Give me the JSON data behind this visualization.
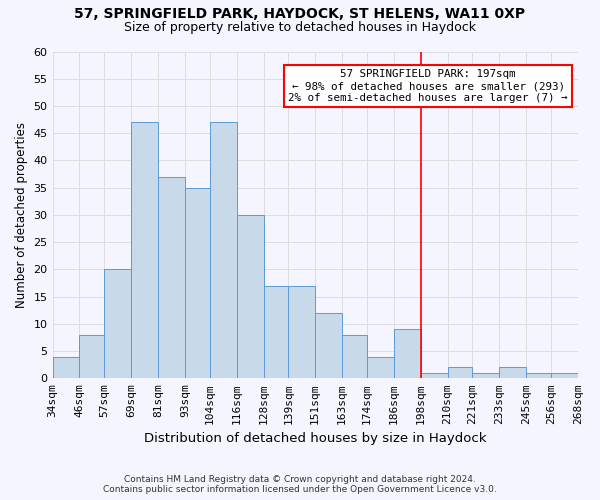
{
  "title1": "57, SPRINGFIELD PARK, HAYDOCK, ST HELENS, WA11 0XP",
  "title2": "Size of property relative to detached houses in Haydock",
  "xlabel": "Distribution of detached houses by size in Haydock",
  "ylabel": "Number of detached properties",
  "footer1": "Contains HM Land Registry data © Crown copyright and database right 2024.",
  "footer2": "Contains public sector information licensed under the Open Government Licence v3.0.",
  "bin_edges": [
    34,
    46,
    57,
    69,
    81,
    93,
    104,
    116,
    128,
    139,
    151,
    163,
    174,
    186,
    198,
    210,
    221,
    233,
    245,
    256,
    268
  ],
  "bin_heights": [
    4,
    8,
    20,
    47,
    37,
    35,
    47,
    30,
    17,
    17,
    12,
    8,
    4,
    9,
    1,
    2,
    1,
    2,
    1,
    1
  ],
  "bar_color": "#c8d9ea",
  "bar_edgecolor": "#5b9bd5",
  "marker_x": 198,
  "marker_color": "red",
  "annotation_title": "57 SPRINGFIELD PARK: 197sqm",
  "annotation_line1": "← 98% of detached houses are smaller (293)",
  "annotation_line2": "2% of semi-detached houses are larger (7) →",
  "annotation_box_facecolor": "white",
  "annotation_box_edgecolor": "red",
  "ylim": [
    0,
    60
  ],
  "xlim": [
    34,
    268
  ],
  "tick_labels": [
    "34sqm",
    "46sqm",
    "57sqm",
    "69sqm",
    "81sqm",
    "93sqm",
    "104sqm",
    "116sqm",
    "128sqm",
    "139sqm",
    "151sqm",
    "163sqm",
    "174sqm",
    "186sqm",
    "198sqm",
    "210sqm",
    "221sqm",
    "233sqm",
    "245sqm",
    "256sqm",
    "268sqm"
  ],
  "yticks": [
    0,
    5,
    10,
    15,
    20,
    25,
    30,
    35,
    40,
    45,
    50,
    55,
    60
  ],
  "grid_color": "#dddddd",
  "background_color": "#f5f5ff"
}
